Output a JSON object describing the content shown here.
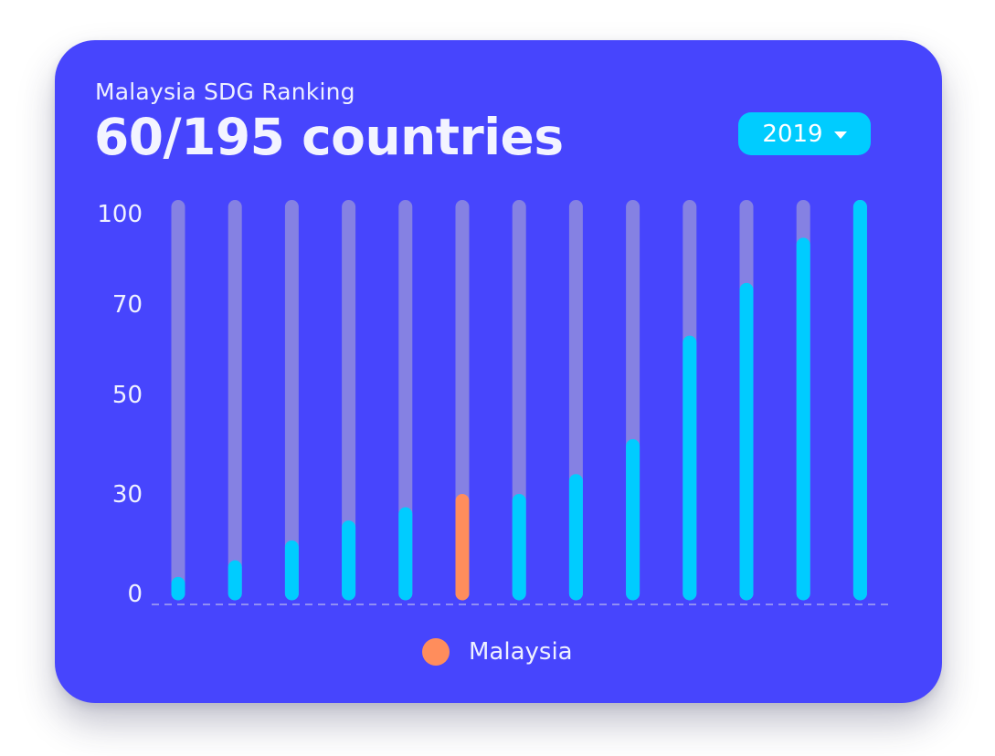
{
  "header": {
    "subtitle": "Malaysia SDG Ranking",
    "title": "60/195 countries"
  },
  "year_select": {
    "value": "2019"
  },
  "legend": {
    "label": "Malaysia"
  },
  "colors": {
    "card_background": "#4745fd",
    "track": "#8581e3",
    "bar": "#00ccff",
    "highlight": "#ff8d5c",
    "axis_text": "#eef0ff"
  },
  "chart_data": {
    "type": "bar",
    "title": "60/195 countries",
    "subtitle": "Malaysia SDG Ranking",
    "y_ticks": [
      "0",
      "30",
      "50",
      "70",
      "100"
    ],
    "categories": [
      "",
      "",
      "",
      "",
      "",
      "",
      "",
      "",
      "",
      "",
      "",
      "",
      ""
    ],
    "values": [
      5,
      10,
      16,
      22,
      26,
      30,
      30,
      34,
      41,
      63,
      77,
      92,
      100
    ],
    "highlight_index": 5,
    "highlight_label": "Malaysia",
    "track_max": 100,
    "grid": false,
    "baseline": "dashed",
    "legend_position": "bottom-center"
  }
}
